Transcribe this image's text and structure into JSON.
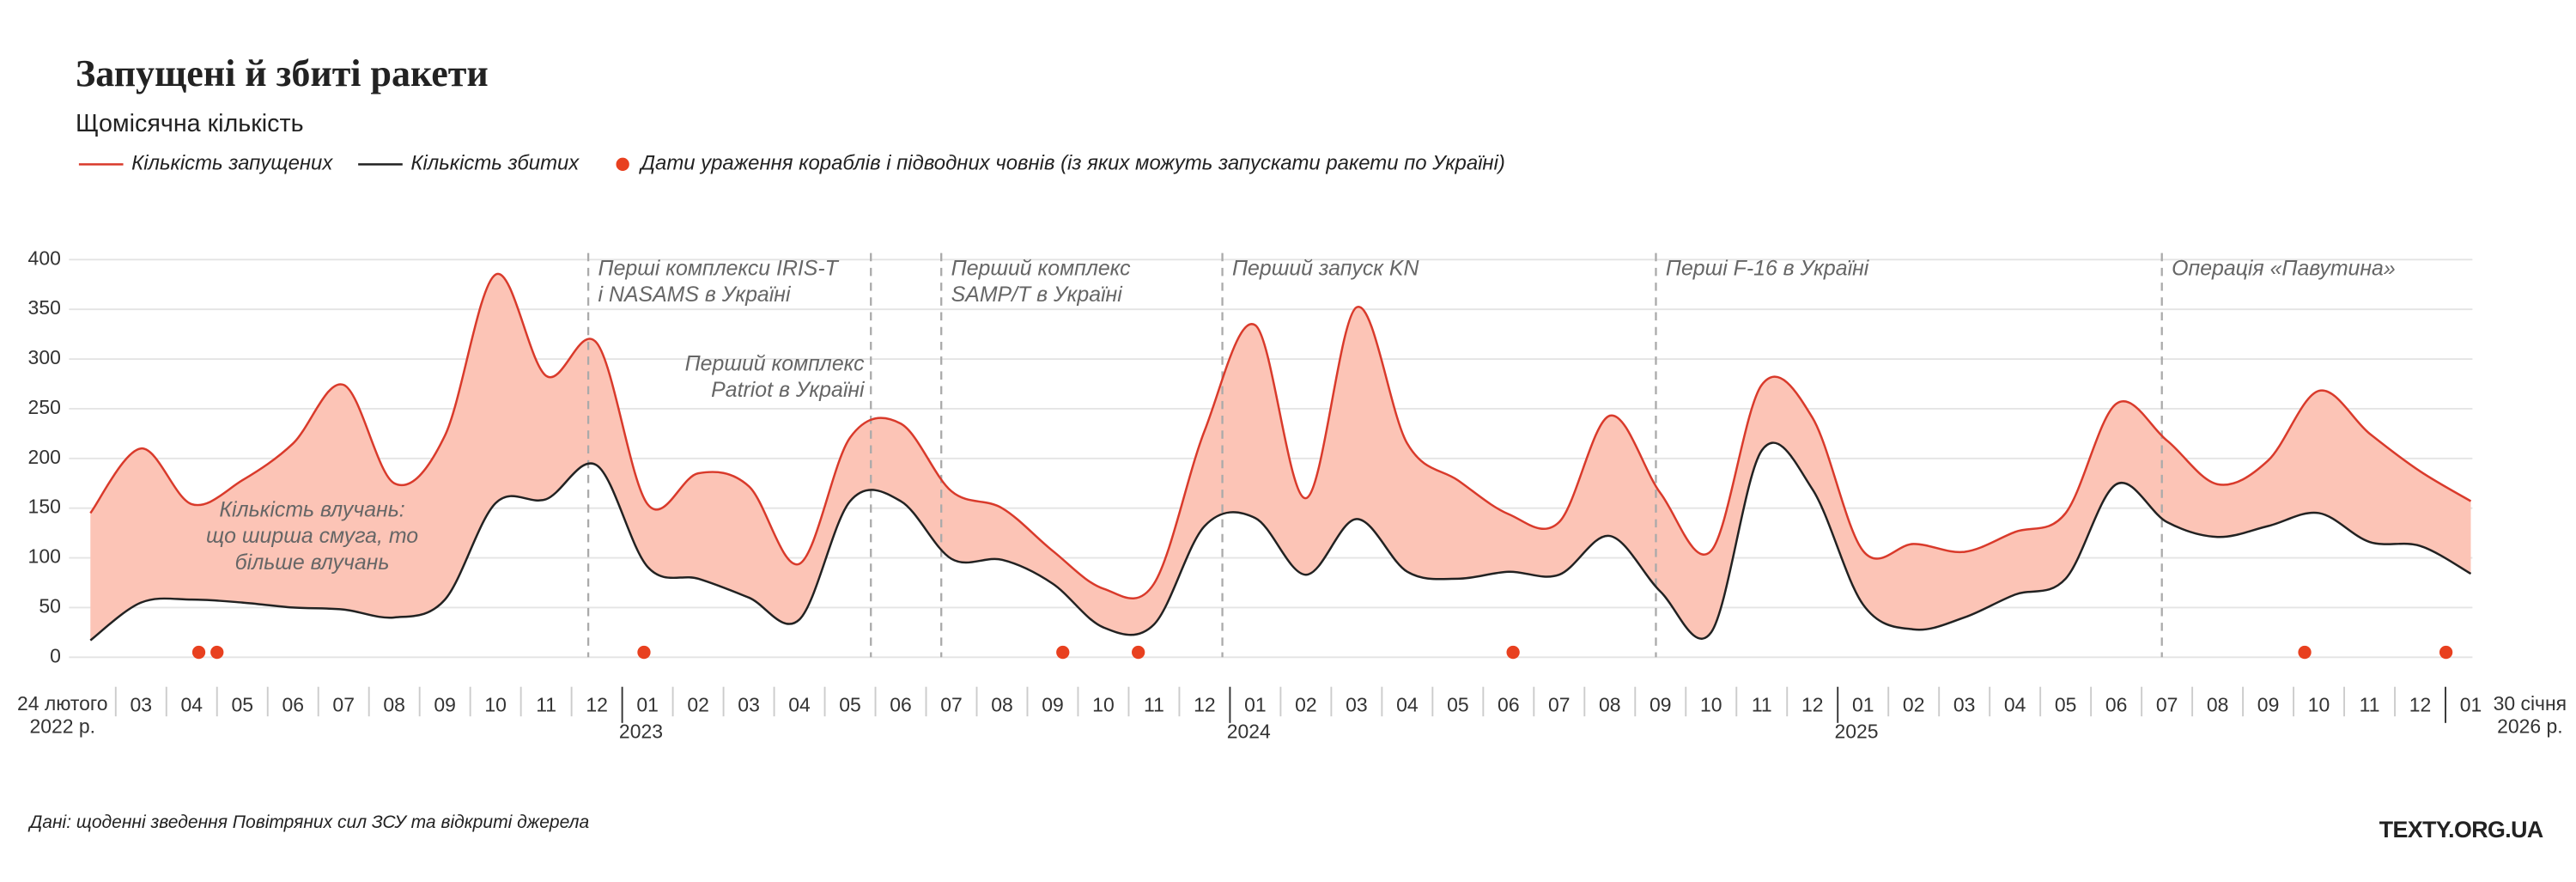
{
  "chart_data": {
    "type": "area",
    "title": "Запущені й збиті ракети",
    "subtitle": "Щомісячна кількість",
    "categories": [
      null,
      "03",
      "04",
      "05",
      "06",
      "07",
      "08",
      "09",
      "10",
      "11",
      "12",
      "01",
      "02",
      "03",
      "04",
      "05",
      "06",
      "07",
      "08",
      "09",
      "10",
      "11",
      "12",
      "01",
      "02",
      "03",
      "04",
      "05",
      "06",
      "07",
      "08",
      "09",
      "10",
      "11",
      "12",
      "01",
      "02",
      "03",
      "04",
      "05",
      "06",
      "07",
      "08",
      "09",
      "10",
      "11",
      "12",
      "01"
    ],
    "x_start_label": [
      "24 лютого",
      "2022 р."
    ],
    "x_end_label": [
      "30 січня",
      "2026 р."
    ],
    "year_labels": [
      {
        "label": "2023",
        "at": 11
      },
      {
        "label": "2024",
        "at": 23
      },
      {
        "label": "2025",
        "at": 35
      }
    ],
    "series": [
      {
        "name": "Кількість запущених",
        "color": "#d93a2b",
        "values": [
          145,
          210,
          154,
          178,
          215,
          274,
          175,
          223,
          385,
          283,
          316,
          154,
          185,
          172,
          94,
          221,
          235,
          167,
          150,
          107,
          69,
          74,
          228,
          334,
          160,
          352,
          215,
          178,
          144,
          136,
          243,
          165,
          107,
          274,
          241,
          107,
          114,
          106,
          126,
          145,
          255,
          218,
          174,
          198,
          268,
          225,
          187,
          157
        ]
      },
      {
        "name": "Кількість збитих",
        "color": "#222222",
        "values": [
          17,
          55,
          58,
          55,
          50,
          48,
          40,
          58,
          155,
          159,
          193,
          91,
          79,
          60,
          38,
          157,
          157,
          99,
          98,
          74,
          30,
          33,
          132,
          140,
          83,
          139,
          86,
          79,
          86,
          83,
          122,
          66,
          25,
          208,
          169,
          53,
          28,
          40,
          63,
          79,
          174,
          136,
          121,
          132,
          145,
          116,
          112,
          84
        ]
      }
    ],
    "band_color": "#fcc4b6",
    "ship_strikes": {
      "name": "Дати ураження кораблів і підводних човнів (із яких можуть запускати ракети по Україні)",
      "color": "#e8401f",
      "x": [
        2.14,
        2.5,
        10.93,
        19.2,
        20.69,
        28.09,
        43.72,
        46.51
      ]
    },
    "events": [
      {
        "lines": [
          "Перші комплекси IRIS-T",
          "і NASAMS в Україні"
        ],
        "x": 9.83,
        "align": "left"
      },
      {
        "lines": [
          "Перший комплекс",
          "Patriot в Україні"
        ],
        "x": 15.41,
        "align": "right"
      },
      {
        "lines": [
          "Перший комплекс",
          "SAMP/T в Україні"
        ],
        "x": 16.8,
        "align": "left"
      },
      {
        "lines": [
          "Перший запуск KN"
        ],
        "x": 22.35,
        "align": "left"
      },
      {
        "lines": [
          "Перші F-16 в Україні"
        ],
        "x": 30.91,
        "align": "left"
      },
      {
        "lines": [
          "Операція «Павутина»"
        ],
        "x": 40.9,
        "align": "left"
      }
    ],
    "band_note": [
      "Кількість влучань:",
      "що ширша смуга, то",
      "більше влучань"
    ],
    "ylim": [
      0,
      400
    ],
    "yticks": [
      0,
      50,
      100,
      150,
      200,
      250,
      300,
      350,
      400
    ],
    "grid": true,
    "source": "Дані: щоденні зведення Повітряних сил ЗСУ та відкриті джерела",
    "brand": "TEXTY.ORG.UA"
  }
}
